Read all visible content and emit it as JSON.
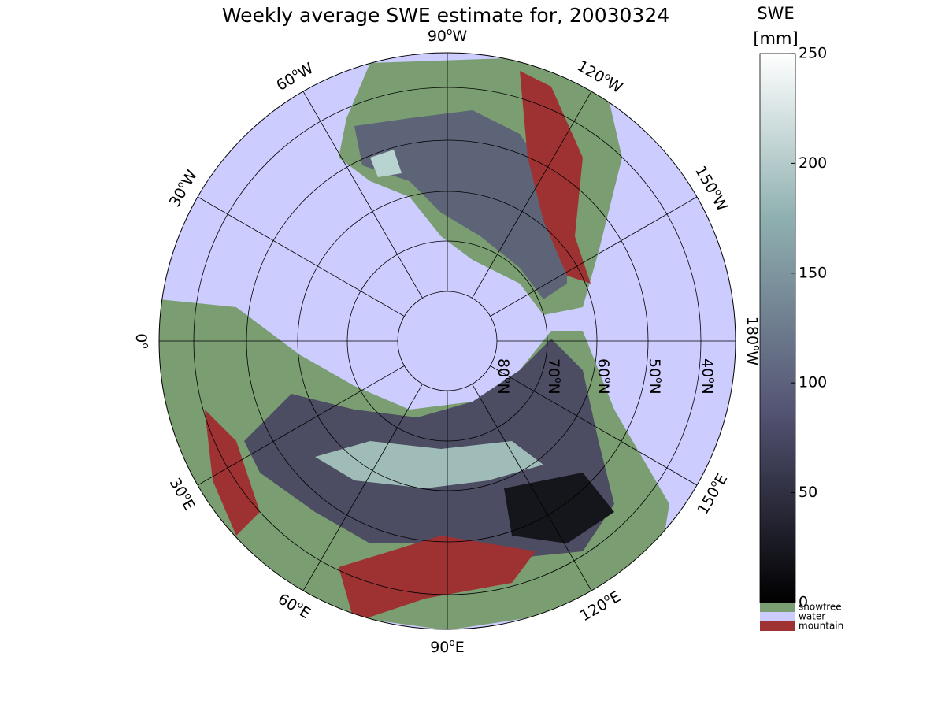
{
  "title": "Weekly average SWE estimate for, 20030324",
  "degree_mark": "o",
  "meridian_labels": [
    {
      "deg": "0",
      "dir": ""
    },
    {
      "deg": "30",
      "dir": "E"
    },
    {
      "deg": "60",
      "dir": "E"
    },
    {
      "deg": "90",
      "dir": "E"
    },
    {
      "deg": "120",
      "dir": "E"
    },
    {
      "deg": "150",
      "dir": "E"
    },
    {
      "deg": "180",
      "dir": "W"
    },
    {
      "deg": "150",
      "dir": "W"
    },
    {
      "deg": "120",
      "dir": "W"
    },
    {
      "deg": "90",
      "dir": "W"
    },
    {
      "deg": "60",
      "dir": "W"
    },
    {
      "deg": "30",
      "dir": "W"
    }
  ],
  "parallel_labels": [
    {
      "deg": "80",
      "dir": "N"
    },
    {
      "deg": "70",
      "dir": "N"
    },
    {
      "deg": "60",
      "dir": "N"
    },
    {
      "deg": "50",
      "dir": "N"
    },
    {
      "deg": "40",
      "dir": "N"
    }
  ],
  "colorbar": {
    "title": "SWE",
    "unit": "[mm]",
    "lim": [
      0,
      250
    ],
    "ticks": [
      0,
      50,
      100,
      150,
      200,
      250
    ]
  },
  "legend": [
    {
      "name": "snowfree",
      "color": "#7a9e72"
    },
    {
      "name": "water",
      "color": "#ccccff"
    },
    {
      "name": "mountain",
      "color": "#9e3232"
    }
  ]
}
